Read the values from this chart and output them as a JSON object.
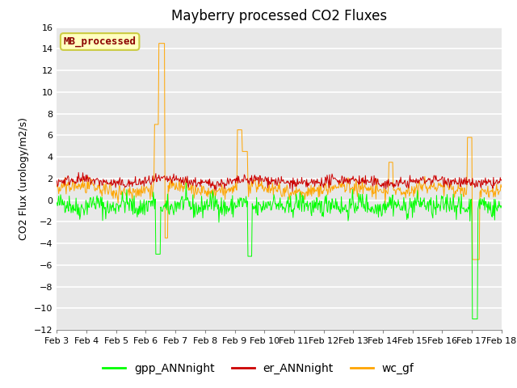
{
  "title": "Mayberry processed CO2 Fluxes",
  "ylabel": "CO2 Flux (urology/m2/s)",
  "ylim": [
    -12,
    16
  ],
  "yticks": [
    -12,
    -10,
    -8,
    -6,
    -4,
    -2,
    0,
    2,
    4,
    6,
    8,
    10,
    12,
    14,
    16
  ],
  "xlabel_dates": [
    "Feb 3",
    "Feb 4",
    "Feb 5",
    "Feb 6",
    "Feb 7",
    "Feb 8",
    "Feb 9",
    "Feb 10",
    "Feb 11",
    "Feb 12",
    "Feb 13",
    "Feb 14",
    "Feb 15",
    "Feb 16",
    "Feb 17",
    "Feb 18"
  ],
  "n_points": 720,
  "colors": {
    "gpp": "#00FF00",
    "er": "#CC0000",
    "wc": "#FFA500",
    "background": "#E8E8E8",
    "fig_bg": "#FFFFFF"
  },
  "legend_labels": [
    "gpp_ANNnight",
    "er_ANNnight",
    "wc_gf"
  ],
  "watermark_text": "MB_processed",
  "watermark_color": "#8B0000",
  "watermark_bg": "#FFFFC0",
  "title_fontsize": 12,
  "tick_fontsize": 8,
  "legend_fontsize": 10,
  "ylabel_fontsize": 9
}
